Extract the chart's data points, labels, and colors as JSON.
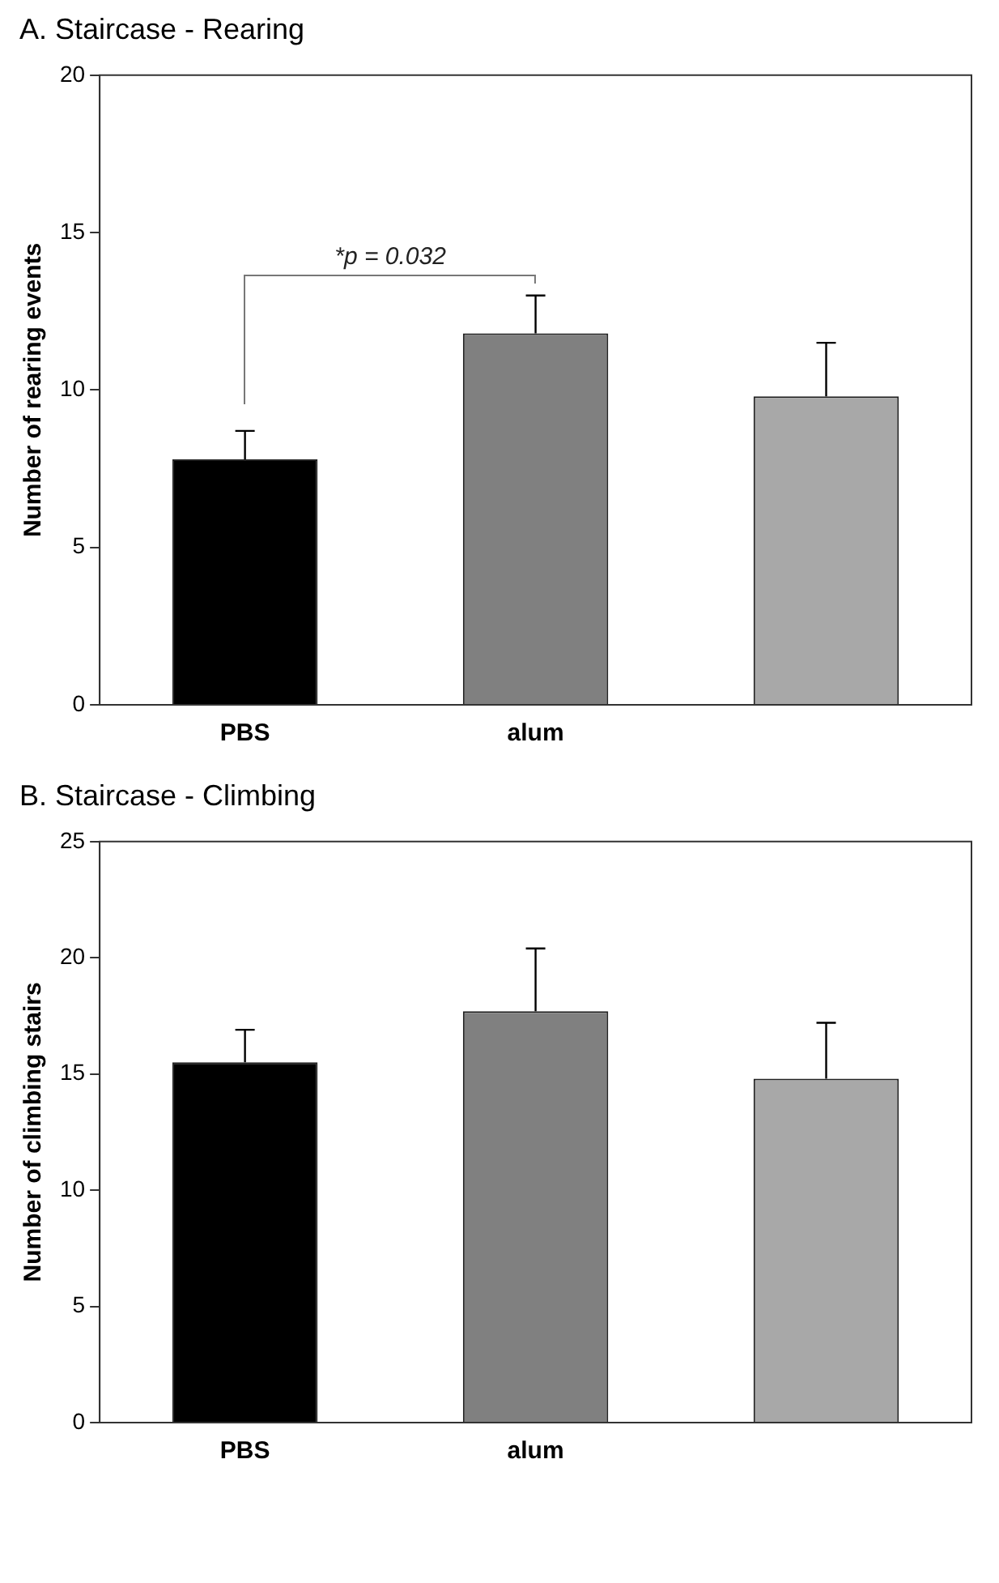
{
  "chart_data": [
    {
      "type": "bar",
      "title": "A. Staircase - Rearing",
      "ylabel": "Number of rearing events",
      "categories": [
        "PBS",
        "alum",
        null
      ],
      "values": [
        7.8,
        11.8,
        9.8
      ],
      "colors": [
        "#000000",
        "#808080",
        "#a8a8a8"
      ],
      "errors": [
        [
          7.8,
          8.7
        ],
        [
          11.8,
          13.0
        ],
        [
          9.8,
          11.5
        ]
      ],
      "ylim": [
        0,
        20
      ],
      "yticks": [
        0,
        5,
        10,
        15,
        20
      ],
      "grid": false,
      "legend": false,
      "annotations": [
        "*p = 0.032"
      ]
    },
    {
      "type": "bar",
      "title": "B. Staircase - Climbing",
      "ylabel": "Number of climbing stairs",
      "categories": [
        "PBS",
        "alum",
        null
      ],
      "values": [
        15.5,
        17.7,
        14.8
      ],
      "colors": [
        "#000000",
        "#808080",
        "#a8a8a8"
      ],
      "errors": [
        [
          15.5,
          16.9
        ],
        [
          17.7,
          20.4
        ],
        [
          14.8,
          17.2
        ]
      ],
      "ylim": [
        0,
        25
      ],
      "yticks": [
        0,
        5,
        10,
        15,
        20,
        25
      ],
      "grid": false,
      "legend": false
    }
  ]
}
